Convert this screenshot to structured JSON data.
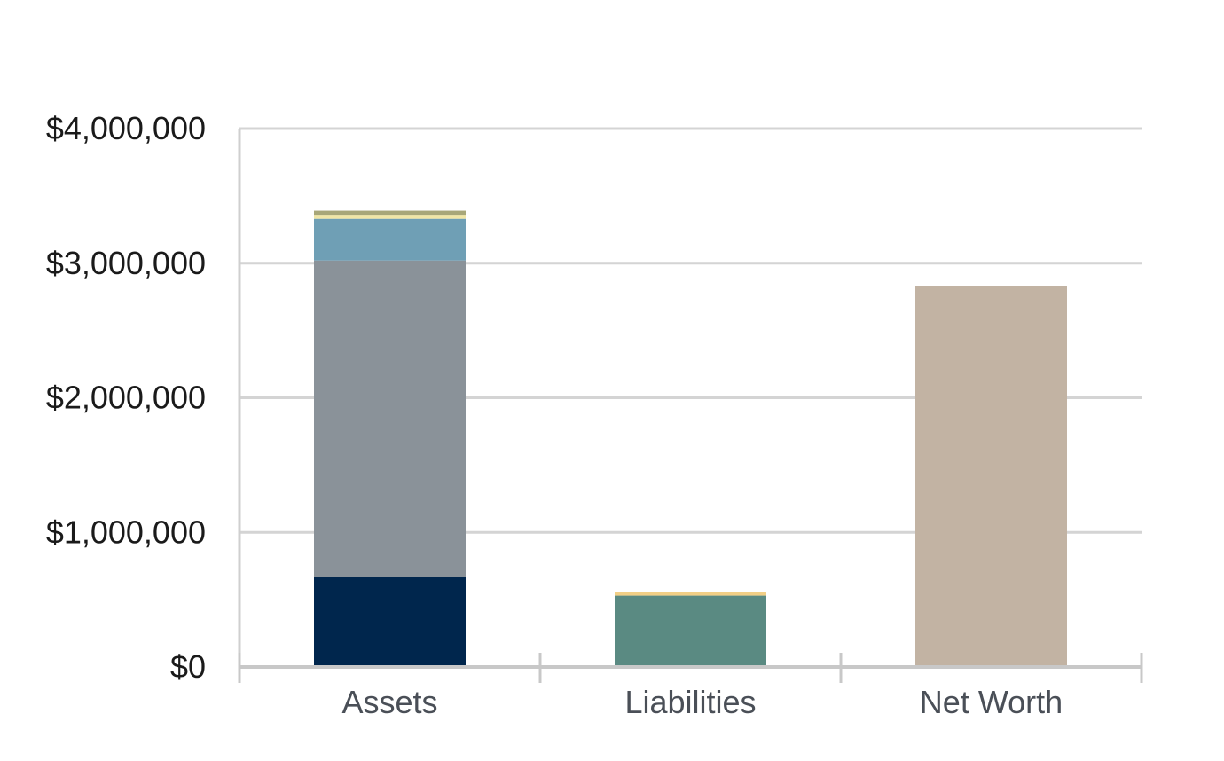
{
  "chart_data": {
    "type": "bar",
    "stacked": true,
    "categories": [
      "Assets",
      "Liabilities",
      "Net Worth"
    ],
    "series": [
      {
        "values": [
          670000,
          0,
          0
        ],
        "color": "#00264d"
      },
      {
        "values": [
          2350000,
          0,
          0
        ],
        "color": "#8a9299"
      },
      {
        "values": [
          310000,
          0,
          0
        ],
        "color": "#6f9fb5"
      },
      {
        "values": [
          30000,
          0,
          0
        ],
        "color": "#f0e6a6"
      },
      {
        "values": [
          30000,
          0,
          0
        ],
        "color": "#a8a779"
      },
      {
        "values": [
          0,
          530000,
          0
        ],
        "color": "#5a8a82"
      },
      {
        "values": [
          0,
          30000,
          0
        ],
        "color": "#f2cf86"
      },
      {
        "values": [
          0,
          0,
          2830000
        ],
        "color": "#c2b3a3"
      }
    ],
    "ylim": [
      0,
      4000000
    ],
    "yticks": [
      "$0",
      "$1,000,000",
      "$2,000,000",
      "$3,000,000",
      "$4,000,000"
    ],
    "grid": true,
    "legend": "none",
    "title": "",
    "xlabel": "",
    "ylabel": ""
  }
}
